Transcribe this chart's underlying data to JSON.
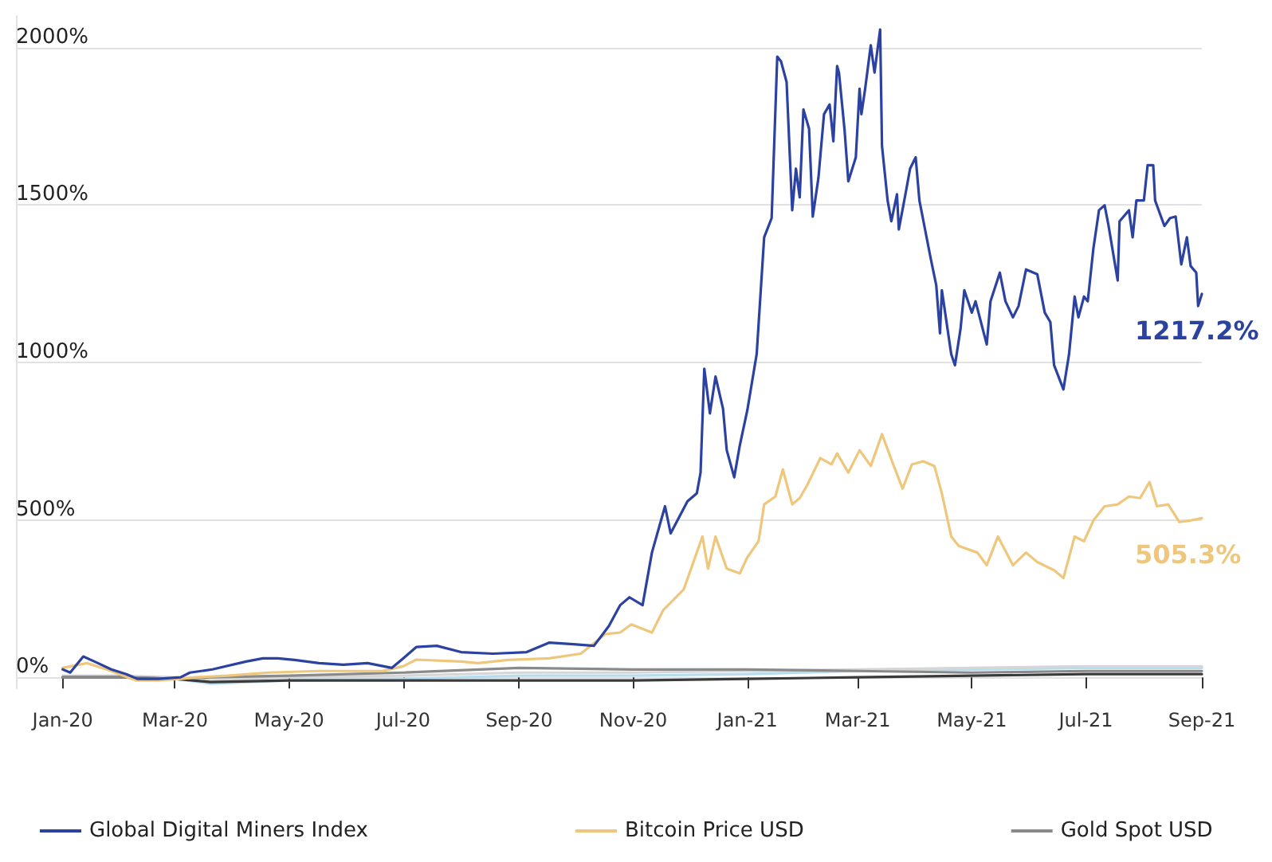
{
  "chart_data": {
    "type": "line",
    "xlim": [
      "2019-12-07",
      "2021-09-01"
    ],
    "xticks": [
      {
        "value": "2020-01-01",
        "label": "Jan-20"
      },
      {
        "value": "2020-03-01",
        "label": "Mar-20"
      },
      {
        "value": "2020-05-01",
        "label": "May-20"
      },
      {
        "value": "2020-07-01",
        "label": "Jul-20"
      },
      {
        "value": "2020-09-01",
        "label": "Sep-20"
      },
      {
        "value": "2020-11-01",
        "label": "Nov-20"
      },
      {
        "value": "2021-01-01",
        "label": "Jan-21"
      },
      {
        "value": "2021-03-01",
        "label": "Mar-21"
      },
      {
        "value": "2021-05-01",
        "label": "May-21"
      },
      {
        "value": "2021-07-01",
        "label": "Jul-21"
      },
      {
        "value": "2021-09-01",
        "label": "Sep-21"
      }
    ],
    "ylim": [
      -35,
      2100
    ],
    "yticks": [
      {
        "value": 0,
        "label": "0%"
      },
      {
        "value": 500,
        "label": "500%"
      },
      {
        "value": 1000,
        "label": "1000%"
      },
      {
        "value": 1500,
        "label": "1500%"
      },
      {
        "value": 2000,
        "label": "2000%"
      }
    ],
    "grid": "y",
    "legend": "bottom",
    "marker": "none",
    "line_style": "solid",
    "annotations": [
      {
        "text": "1217.2%",
        "x": "2021-09-01",
        "y": 1217.2
      },
      {
        "text": "505.3%",
        "x": "2021-09-01",
        "y": 505.3
      }
    ],
    "series": [
      {
        "name": "Global Digital Miners Index",
        "color": "#2b42a0",
        "x": [
          "2020-01-01",
          "2020-01-05",
          "2020-01-12",
          "2020-01-18",
          "2020-01-27",
          "2020-02-04",
          "2020-02-10",
          "2020-02-21",
          "2020-03-04",
          "2020-03-09",
          "2020-03-21",
          "2020-04-08",
          "2020-04-17",
          "2020-04-25",
          "2020-05-04",
          "2020-05-17",
          "2020-05-30",
          "2020-06-12",
          "2020-06-25",
          "2020-07-01",
          "2020-07-08",
          "2020-07-19",
          "2020-08-01",
          "2020-08-18",
          "2020-09-05",
          "2020-09-17",
          "2020-09-30",
          "2020-10-11",
          "2020-10-19",
          "2020-10-25",
          "2020-10-30",
          "2020-11-06",
          "2020-11-11",
          "2020-11-18",
          "2020-11-21",
          "2020-11-30",
          "2020-12-05",
          "2020-12-07",
          "2020-12-09",
          "2020-12-12",
          "2020-12-15",
          "2020-12-19",
          "2020-12-21",
          "2020-12-25",
          "2020-12-28",
          "2021-01-01",
          "2021-01-06",
          "2021-01-10",
          "2021-01-14",
          "2021-01-17",
          "2021-01-19",
          "2021-01-22",
          "2021-01-25",
          "2021-01-27",
          "2021-01-29",
          "2021-01-31",
          "2021-02-03",
          "2021-02-05",
          "2021-02-08",
          "2021-02-11",
          "2021-02-14",
          "2021-02-16",
          "2021-02-18",
          "2021-02-19",
          "2021-02-22",
          "2021-02-24",
          "2021-02-28",
          "2021-03-02",
          "2021-03-03",
          "2021-03-05",
          "2021-03-08",
          "2021-03-10",
          "2021-03-13",
          "2021-03-14",
          "2021-03-17",
          "2021-03-19",
          "2021-03-22",
          "2021-03-23",
          "2021-03-27",
          "2021-03-29",
          "2021-04-01",
          "2021-04-03",
          "2021-04-09",
          "2021-04-12",
          "2021-04-14",
          "2021-04-15",
          "2021-04-20",
          "2021-04-22",
          "2021-04-25",
          "2021-04-27",
          "2021-05-01",
          "2021-05-03",
          "2021-05-09",
          "2021-05-11",
          "2021-05-16",
          "2021-05-19",
          "2021-05-23",
          "2021-05-26",
          "2021-05-30",
          "2021-06-05",
          "2021-06-09",
          "2021-06-12",
          "2021-06-14",
          "2021-06-19",
          "2021-06-22",
          "2021-06-25",
          "2021-06-27",
          "2021-06-30",
          "2021-07-02",
          "2021-07-05",
          "2021-07-08",
          "2021-07-11",
          "2021-07-13",
          "2021-07-18",
          "2021-07-19",
          "2021-07-24",
          "2021-07-26",
          "2021-07-28",
          "2021-08-01",
          "2021-08-03",
          "2021-08-06",
          "2021-08-07",
          "2021-08-12",
          "2021-08-15",
          "2021-08-18",
          "2021-08-21",
          "2021-08-24",
          "2021-08-26",
          "2021-08-29",
          "2021-08-30",
          "2021-09-01"
        ],
        "values": [
          25,
          15,
          66,
          50,
          25,
          10,
          -5,
          -5,
          0,
          15,
          25,
          50,
          60,
          60,
          55,
          45,
          40,
          45,
          30,
          60,
          96,
          100,
          80,
          75,
          80,
          110,
          105,
          100,
          163,
          229,
          254,
          229,
          396,
          543,
          457,
          559,
          584,
          650,
          980,
          838,
          955,
          853,
          721,
          635,
          737,
          848,
          1026,
          1397,
          1458,
          1971,
          1956,
          1890,
          1483,
          1615,
          1524,
          1803,
          1742,
          1463,
          1585,
          1788,
          1819,
          1702,
          1941,
          1920,
          1737,
          1575,
          1651,
          1869,
          1788,
          1869,
          2007,
          1920,
          2057,
          1687,
          1514,
          1448,
          1534,
          1422,
          1549,
          1615,
          1651,
          1514,
          1331,
          1245,
          1092,
          1229,
          1026,
          991,
          1107,
          1229,
          1158,
          1194,
          1057,
          1194,
          1285,
          1194,
          1143,
          1179,
          1295,
          1280,
          1158,
          1128,
          991,
          914,
          1026,
          1209,
          1143,
          1209,
          1194,
          1361,
          1483,
          1499,
          1438,
          1260,
          1448,
          1483,
          1397,
          1514,
          1514,
          1626,
          1626,
          1514,
          1433,
          1458,
          1463,
          1311,
          1397,
          1306,
          1285,
          1179,
          1217.2
        ]
      },
      {
        "name": "Bitcoin Price USD",
        "color": "#efc77c",
        "x": [
          "2020-01-01",
          "2020-01-14",
          "2020-01-27",
          "2020-02-09",
          "2020-02-21",
          "2020-03-04",
          "2020-03-12",
          "2020-03-29",
          "2020-04-20",
          "2020-05-17",
          "2020-06-20",
          "2020-07-01",
          "2020-07-08",
          "2020-08-01",
          "2020-08-10",
          "2020-08-26",
          "2020-09-17",
          "2020-10-04",
          "2020-10-17",
          "2020-10-25",
          "2020-10-31",
          "2020-11-11",
          "2020-11-17",
          "2020-11-28",
          "2020-12-08",
          "2020-12-11",
          "2020-12-15",
          "2020-12-21",
          "2020-12-28",
          "2021-01-01",
          "2021-01-07",
          "2021-01-10",
          "2021-01-16",
          "2021-01-20",
          "2021-01-25",
          "2021-01-29",
          "2021-02-02",
          "2021-02-09",
          "2021-02-15",
          "2021-02-18",
          "2021-02-24",
          "2021-03-02",
          "2021-03-08",
          "2021-03-14",
          "2021-03-20",
          "2021-03-25",
          "2021-03-30",
          "2021-04-05",
          "2021-04-11",
          "2021-04-15",
          "2021-04-20",
          "2021-04-24",
          "2021-05-04",
          "2021-05-09",
          "2021-05-15",
          "2021-05-23",
          "2021-05-30",
          "2021-06-05",
          "2021-06-14",
          "2021-06-19",
          "2021-06-25",
          "2021-06-30",
          "2021-07-05",
          "2021-07-11",
          "2021-07-18",
          "2021-07-24",
          "2021-07-30",
          "2021-08-04",
          "2021-08-08",
          "2021-08-14",
          "2021-08-20",
          "2021-08-26",
          "2021-09-01"
        ],
        "values": [
          30,
          45,
          20,
          -10,
          -10,
          -5,
          0,
          5,
          15,
          20,
          20,
          35,
          56,
          50,
          45,
          55,
          60,
          75,
          137,
          142,
          168,
          142,
          213,
          279,
          447,
          345,
          447,
          345,
          330,
          381,
          432,
          549,
          574,
          660,
          549,
          569,
          610,
          696,
          676,
          711,
          650,
          721,
          671,
          772,
          676,
          599,
          676,
          686,
          671,
          584,
          447,
          417,
          396,
          356,
          447,
          356,
          396,
          366,
          340,
          315,
          447,
          432,
          498,
          543,
          549,
          574,
          569,
          620,
          543,
          549,
          493,
          498,
          505.3
        ]
      },
      {
        "name": "Gold Spot USD",
        "color": "#8a8a8a",
        "x": [
          "2020-01-01",
          "2020-02-01",
          "2020-03-01",
          "2020-03-20",
          "2020-05-01",
          "2020-07-01",
          "2020-09-01",
          "2020-11-01",
          "2021-01-01",
          "2021-03-01",
          "2021-05-01",
          "2021-07-01",
          "2021-09-01"
        ],
        "values": [
          0,
          0,
          -5,
          0,
          5,
          15,
          30,
          25,
          25,
          20,
          15,
          20,
          20
        ]
      },
      {
        "color": "#3a3a3a",
        "x": [
          "2020-01-01",
          "2020-02-01",
          "2020-03-01",
          "2020-03-20",
          "2020-05-01",
          "2020-07-01",
          "2020-09-01",
          "2020-11-01",
          "2021-01-01",
          "2021-03-01",
          "2021-05-01",
          "2021-07-01",
          "2021-09-01"
        ],
        "values": [
          0,
          0,
          -5,
          -15,
          -10,
          -10,
          -10,
          -10,
          -5,
          0,
          5,
          10,
          10
        ]
      },
      {
        "color": "#d6d6d6",
        "x": [
          "2020-01-01",
          "2020-02-01",
          "2020-03-01",
          "2020-03-20",
          "2020-05-01",
          "2020-07-01",
          "2020-09-01",
          "2020-11-01",
          "2021-01-01",
          "2021-03-01",
          "2021-05-01",
          "2021-07-01",
          "2021-09-01"
        ],
        "values": [
          5,
          5,
          0,
          -10,
          0,
          5,
          15,
          15,
          20,
          25,
          30,
          35,
          35
        ]
      },
      {
        "color": "#b5dcf0",
        "x": [
          "2020-01-01",
          "2020-02-01",
          "2020-03-01",
          "2020-03-20",
          "2020-05-01",
          "2020-07-01",
          "2020-09-01",
          "2020-11-01",
          "2021-01-01",
          "2021-03-01",
          "2021-05-01",
          "2021-07-01",
          "2021-09-01"
        ],
        "values": [
          0,
          0,
          -5,
          -20,
          -10,
          -5,
          5,
          5,
          10,
          20,
          25,
          30,
          30
        ]
      }
    ]
  }
}
